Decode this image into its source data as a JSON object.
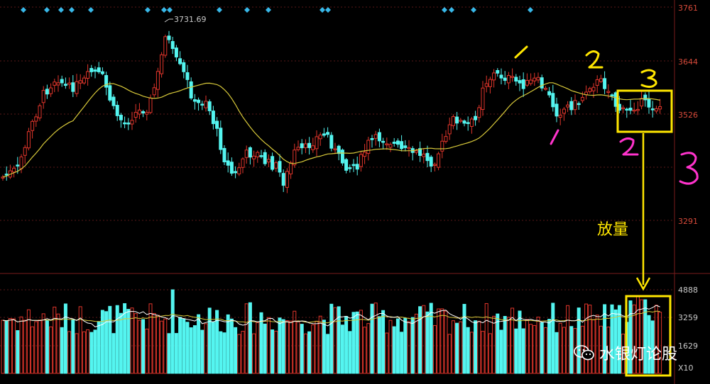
{
  "chart_data": [
    {
      "type": "candlestick",
      "panel": "price",
      "title": "",
      "y_ticks": [
        "3761",
        "3644",
        "3526",
        "3291"
      ],
      "ylim": [
        3180,
        3761
      ],
      "peak_label": "3731.69",
      "moving_average": "yellow",
      "colors": {
        "up": "#e0352b",
        "down": "#54f5f0",
        "ma": "#d8c93a",
        "grid": "#5a1717",
        "axis": "#d84a3a"
      }
    },
    {
      "type": "bar",
      "panel": "volume",
      "y_ticks": [
        "4888",
        "3259",
        "1629"
      ],
      "unit": "X10",
      "colors": {
        "up": "#e0352b",
        "down": "#54f5f0",
        "ma_short": "#ffffff",
        "ma_long": "#d8c93a"
      }
    }
  ],
  "annotations": {
    "volume_note": "放量",
    "yellow_marks": [
      "1",
      "2",
      "3"
    ],
    "magenta_marks": [
      "1",
      "2",
      "3"
    ],
    "highlight_color": "#ffe600",
    "magenta_color": "#ff33cc"
  },
  "watermark": "水银灯论股"
}
